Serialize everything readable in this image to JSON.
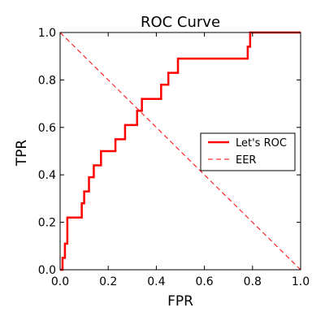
{
  "chart_data": {
    "type": "line",
    "title": "ROC Curve",
    "xlabel": "FPR",
    "ylabel": "TPR",
    "xlim": [
      0.0,
      1.0
    ],
    "ylim": [
      0.0,
      1.0
    ],
    "x_ticks": [
      "0.0",
      "0.2",
      "0.4",
      "0.6",
      "0.8",
      "1.0"
    ],
    "y_ticks": [
      "0.0",
      "0.2",
      "0.4",
      "0.6",
      "0.8",
      "1.0"
    ],
    "grid": false,
    "legend_position": "center-right",
    "series": [
      {
        "name": "Let's ROC",
        "color": "#ff0000",
        "style": "solid",
        "x": [
          0.0,
          0.0,
          0.01,
          0.01,
          0.02,
          0.02,
          0.03,
          0.03,
          0.09,
          0.09,
          0.1,
          0.1,
          0.12,
          0.12,
          0.14,
          0.14,
          0.17,
          0.17,
          0.23,
          0.23,
          0.27,
          0.27,
          0.32,
          0.32,
          0.34,
          0.34,
          0.42,
          0.42,
          0.45,
          0.45,
          0.49,
          0.49,
          0.78,
          0.78,
          0.79,
          0.79,
          1.0
        ],
        "y": [
          0.0,
          0.0,
          0.0,
          0.05,
          0.05,
          0.11,
          0.11,
          0.22,
          0.22,
          0.28,
          0.28,
          0.33,
          0.33,
          0.39,
          0.39,
          0.44,
          0.44,
          0.5,
          0.5,
          0.55,
          0.55,
          0.61,
          0.61,
          0.67,
          0.67,
          0.72,
          0.72,
          0.78,
          0.78,
          0.83,
          0.83,
          0.89,
          0.89,
          0.94,
          0.94,
          1.0,
          1.0
        ]
      },
      {
        "name": "EER",
        "color": "#ff0000",
        "style": "dashed",
        "x": [
          0.0,
          1.0
        ],
        "y": [
          1.0,
          0.0
        ]
      }
    ]
  }
}
